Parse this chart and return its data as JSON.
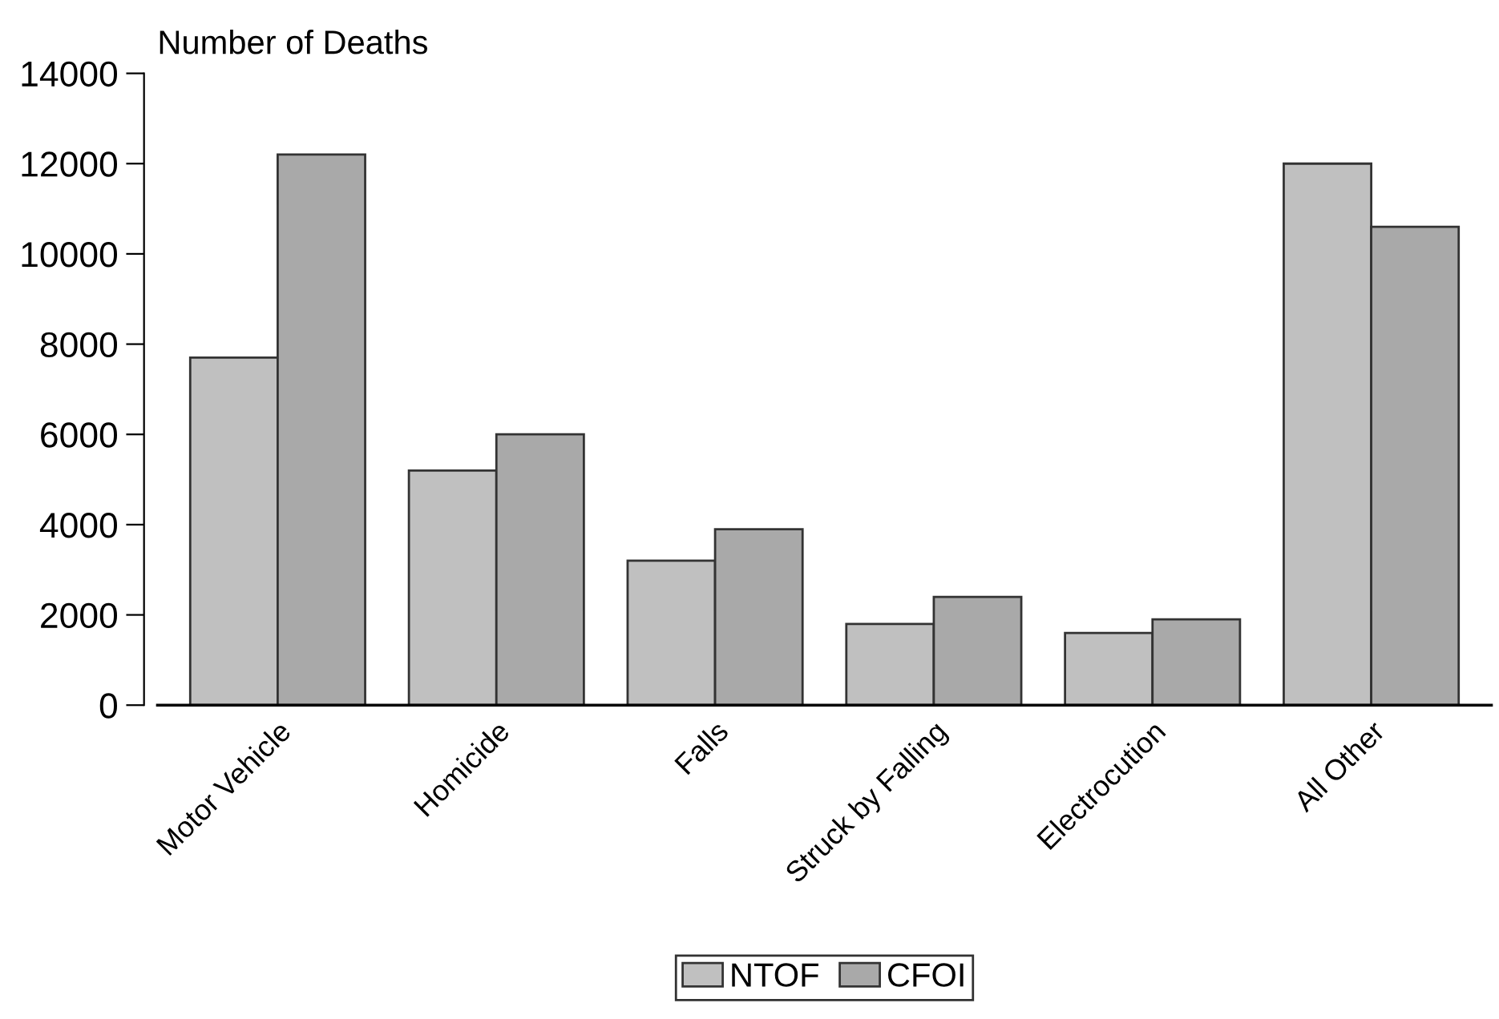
{
  "chart_data": {
    "type": "bar",
    "ylabel": "Number of Deaths",
    "categories": [
      "Motor Vehicle",
      "Homicide",
      "Falls",
      "Struck by Falling",
      "Electrocution",
      "All Other"
    ],
    "series": [
      {
        "name": "NTOF",
        "color": "#c0c0c0",
        "values": [
          7700,
          5200,
          3200,
          1800,
          1600,
          12000
        ]
      },
      {
        "name": "CFOI",
        "color": "#a9a9a9",
        "values": [
          12200,
          6000,
          3900,
          2400,
          1900,
          10600
        ]
      }
    ],
    "ylim": [
      0,
      14000
    ],
    "yticks": [
      0,
      2000,
      4000,
      6000,
      8000,
      10000,
      12000,
      14000
    ],
    "grid": false,
    "legend": "bottom"
  }
}
